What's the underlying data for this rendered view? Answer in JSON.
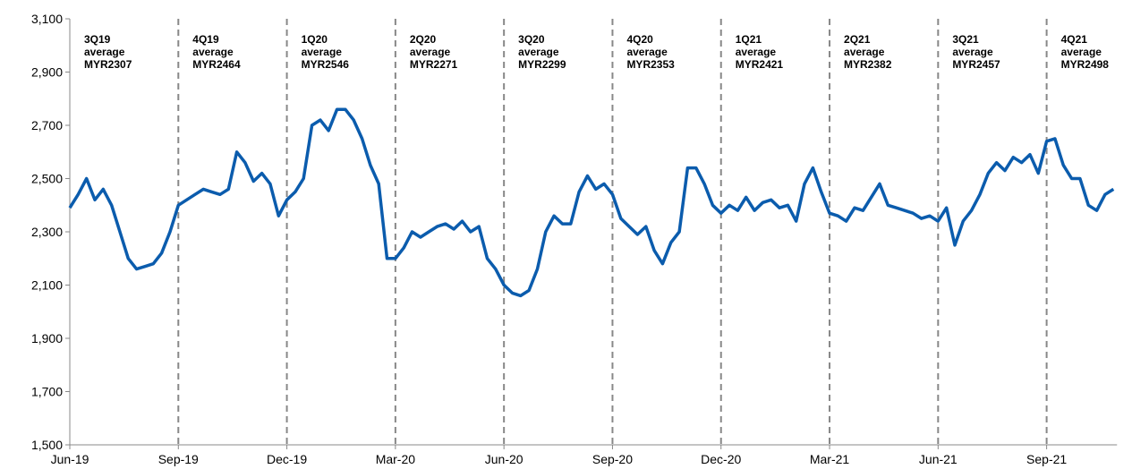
{
  "chart_data": {
    "type": "line",
    "categories": [
      "Jun-19",
      null,
      null,
      null,
      null,
      null,
      null,
      null,
      null,
      null,
      null,
      null,
      null,
      "Sep-19",
      null,
      null,
      null,
      null,
      null,
      null,
      null,
      null,
      null,
      null,
      null,
      null,
      "Dec-19",
      null,
      null,
      null,
      null,
      null,
      null,
      null,
      null,
      null,
      null,
      null,
      null,
      "Mar-20",
      null,
      null,
      null,
      null,
      null,
      null,
      null,
      null,
      null,
      null,
      null,
      null,
      "Jun-20",
      null,
      null,
      null,
      null,
      null,
      null,
      null,
      null,
      null,
      null,
      null,
      null,
      "Sep-20",
      null,
      null,
      null,
      null,
      null,
      null,
      null,
      null,
      null,
      null,
      null,
      null,
      "Dec-20",
      null,
      null,
      null,
      null,
      null,
      null,
      null,
      null,
      null,
      null,
      null,
      null,
      "Mar-21",
      null,
      null,
      null,
      null,
      null,
      null,
      null,
      null,
      null,
      null,
      null,
      null,
      "Jun-21",
      null,
      null,
      null,
      null,
      null,
      null,
      null,
      null,
      null,
      null,
      null,
      null,
      "Sep-21",
      null,
      null,
      null,
      null,
      null,
      null,
      null,
      null
    ],
    "series": [
      {
        "color": "#0b5cad",
        "values": [
          2390,
          2440,
          2500,
          2420,
          2460,
          2400,
          2300,
          2200,
          2160,
          2170,
          2180,
          2220,
          2300,
          2400,
          2420,
          2440,
          2460,
          2450,
          2440,
          2460,
          2600,
          2560,
          2490,
          2520,
          2480,
          2360,
          2420,
          2450,
          2500,
          2700,
          2720,
          2680,
          2760,
          2760,
          2720,
          2650,
          2550,
          2480,
          2200,
          2200,
          2240,
          2300,
          2280,
          2300,
          2320,
          2330,
          2310,
          2340,
          2300,
          2320,
          2200,
          2160,
          2100,
          2070,
          2060,
          2080,
          2160,
          2300,
          2360,
          2330,
          2330,
          2450,
          2510,
          2460,
          2480,
          2440,
          2350,
          2320,
          2290,
          2320,
          2230,
          2180,
          2260,
          2300,
          2540,
          2540,
          2480,
          2400,
          2370,
          2400,
          2380,
          2430,
          2380,
          2410,
          2420,
          2390,
          2400,
          2340,
          2480,
          2540,
          2450,
          2370,
          2360,
          2340,
          2390,
          2380,
          2430,
          2480,
          2400,
          2390,
          2380,
          2370,
          2350,
          2360,
          2340,
          2390,
          2250,
          2340,
          2380,
          2440,
          2520,
          2560,
          2530,
          2580,
          2560,
          2590,
          2520,
          2640,
          2650,
          2550,
          2500,
          2500,
          2400,
          2380,
          2440,
          2460
        ]
      }
    ],
    "ylim": [
      1500,
      3100
    ],
    "yticks": [
      {
        "value": 1500,
        "label": "1,500"
      },
      {
        "value": 1700,
        "label": "1,700"
      },
      {
        "value": 1900,
        "label": "1,900"
      },
      {
        "value": 2100,
        "label": "2,100"
      },
      {
        "value": 2300,
        "label": "2,300"
      },
      {
        "value": 2500,
        "label": "2,500"
      },
      {
        "value": 2700,
        "label": "2,700"
      },
      {
        "value": 2900,
        "label": "2,900"
      },
      {
        "value": 3100,
        "label": "3,100"
      }
    ],
    "annotations": [
      [
        "3Q19",
        "average",
        "MYR2307"
      ],
      [
        "4Q19",
        "average",
        "MYR2464"
      ],
      [
        "1Q20",
        "average",
        "MYR2546"
      ],
      [
        "2Q20",
        "average",
        "MYR2271"
      ],
      [
        "3Q20",
        "average",
        "MYR2299"
      ],
      [
        "4Q20",
        "average",
        "MYR2353"
      ],
      [
        "1Q21",
        "average",
        "MYR2421"
      ],
      [
        "2Q21",
        "average",
        "MYR2382"
      ],
      [
        "3Q21",
        "average",
        "MYR2457"
      ],
      [
        "4Q21",
        "average",
        "MYR2498"
      ]
    ]
  }
}
